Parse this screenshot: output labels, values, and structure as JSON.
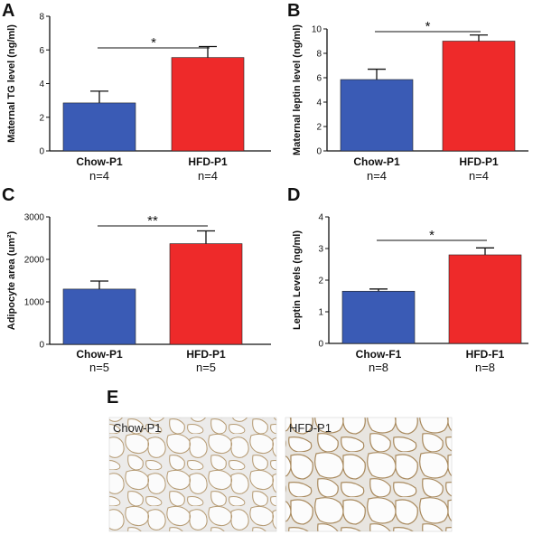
{
  "colors": {
    "chow": "#3a5bb5",
    "hfd": "#ee2a2a",
    "axis": "#111111"
  },
  "chart_data": [
    {
      "panel": "A",
      "type": "bar",
      "ylabel": "Maternal TG level (ng/ml)",
      "ylim": [
        0,
        8
      ],
      "yticks": [
        0,
        2,
        4,
        6,
        8
      ],
      "categories": [
        "Chow-P1",
        "HFD-P1"
      ],
      "n_labels": [
        "n=4",
        "n=4"
      ],
      "values": [
        2.85,
        5.55
      ],
      "errors": [
        0.7,
        0.65
      ],
      "significance": "*"
    },
    {
      "panel": "B",
      "type": "bar",
      "ylabel": "Maternal leptin level (ng/ml)",
      "ylim": [
        0,
        10
      ],
      "yticks": [
        0,
        2,
        4,
        6,
        8,
        10
      ],
      "categories": [
        "Chow-P1",
        "HFD-P1"
      ],
      "n_labels": [
        "n=4",
        "n=4"
      ],
      "values": [
        5.85,
        9.0
      ],
      "errors": [
        0.85,
        0.5
      ],
      "significance": "*"
    },
    {
      "panel": "C",
      "type": "bar",
      "ylabel": "Adipocyte area (um²)",
      "ylim": [
        0,
        3000
      ],
      "yticks": [
        0,
        1000,
        2000,
        3000
      ],
      "categories": [
        "Chow-P1",
        "HFD-P1"
      ],
      "n_labels": [
        "n=5",
        "n=5"
      ],
      "values": [
        1300,
        2370
      ],
      "errors": [
        190,
        300
      ],
      "significance": "**"
    },
    {
      "panel": "D",
      "type": "bar",
      "ylabel": "Leptin Levels (ng/ml)",
      "ylim": [
        0,
        4
      ],
      "yticks": [
        0,
        1,
        2,
        3,
        4
      ],
      "categories": [
        "Chow-F1",
        "HFD-F1"
      ],
      "n_labels": [
        "n=8",
        "n=8"
      ],
      "values": [
        1.65,
        2.8
      ],
      "errors": [
        0.07,
        0.22
      ],
      "significance": "*"
    }
  ],
  "panel_e": {
    "letter": "E",
    "images": [
      {
        "label": "Chow-P1"
      },
      {
        "label": "HFD-P1"
      }
    ]
  }
}
